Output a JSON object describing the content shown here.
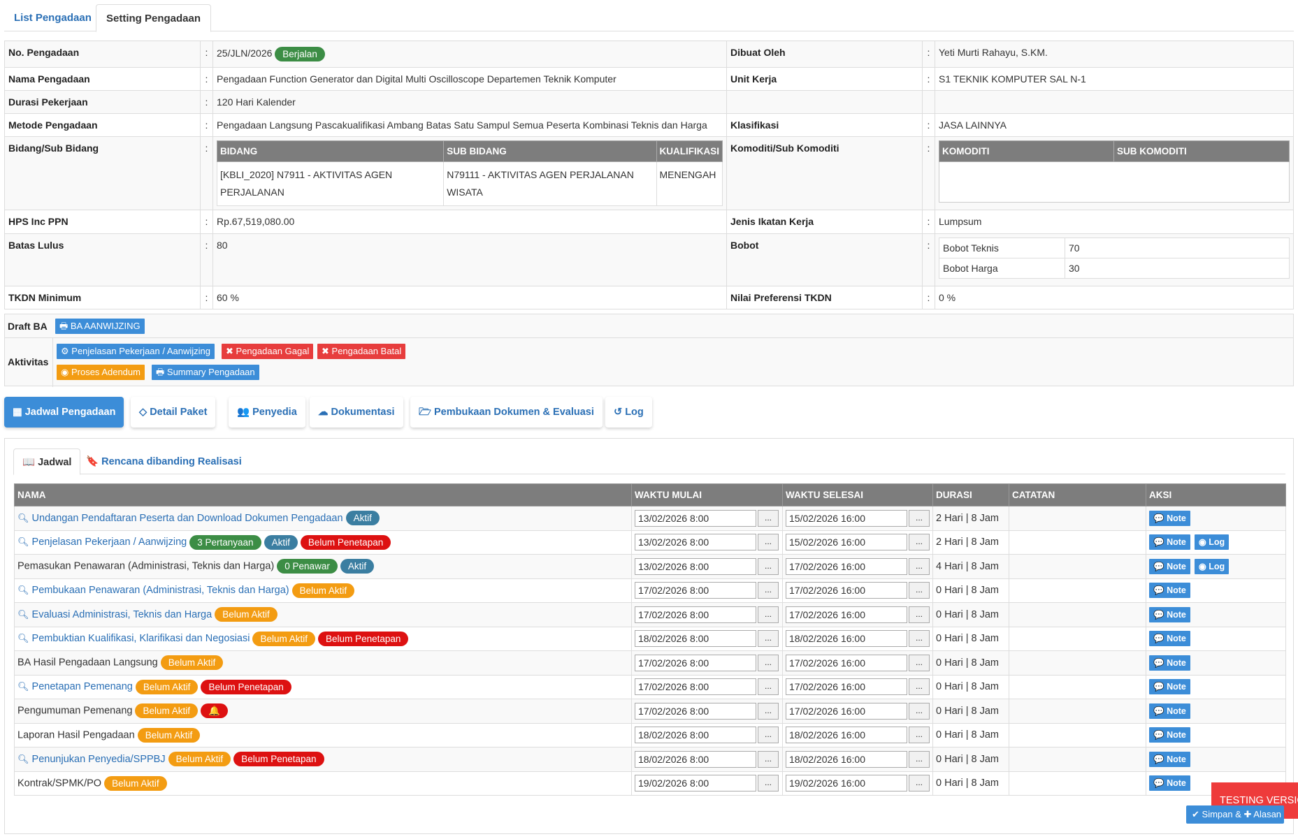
{
  "top_tabs": [
    {
      "label": "List Pengadaan"
    },
    {
      "label": "Setting Pengadaan"
    }
  ],
  "info": {
    "no_pengadaan": {
      "label": "No. Pengadaan",
      "value": "25/JLN/2026",
      "status": "Berjalan"
    },
    "dibuat_oleh": {
      "label": "Dibuat Oleh",
      "value": "Yeti Murti Rahayu, S.KM."
    },
    "nama_pengadaan": {
      "label": "Nama Pengadaan",
      "value": "Pengadaan Function Generator dan Digital Multi Oscilloscope Departemen Teknik Komputer"
    },
    "unit_kerja": {
      "label": "Unit Kerja",
      "value": "S1 TEKNIK KOMPUTER SAL N-1"
    },
    "durasi": {
      "label": "Durasi Pekerjaan",
      "value": "120 Hari Kalender"
    },
    "metode": {
      "label": "Metode Pengadaan",
      "value": "Pengadaan Langsung Pascakualifikasi Ambang Batas Satu Sampul Semua Peserta Kombinasi Teknis dan Harga"
    },
    "klasifikasi": {
      "label": "Klasifikasi",
      "value": "JASA LAINNYA"
    },
    "bidang": {
      "label": "Bidang/Sub Bidang",
      "headers": [
        "BIDANG",
        "SUB BIDANG",
        "KUALIFIKASI"
      ],
      "bidang": "[KBLI_2020] N7911 - AKTIVITAS AGEN PERJALANAN",
      "sub_bidang": "N79111 - AKTIVITAS AGEN PERJALANAN WISATA",
      "kualifikasi": "MENENGAH"
    },
    "komoditi": {
      "label": "Komoditi/Sub Komoditi",
      "headers": [
        "KOMODITI",
        "SUB KOMODITI"
      ]
    },
    "hps": {
      "label": "HPS Inc PPN",
      "value": "Rp.67,519,080.00"
    },
    "jenis_ikatan": {
      "label": "Jenis Ikatan Kerja",
      "value": "Lumpsum"
    },
    "batas_lulus": {
      "label": "Batas Lulus",
      "value": "80"
    },
    "bobot": {
      "label": "Bobot",
      "teknis_label": "Bobot Teknis",
      "teknis": "70",
      "harga_label": "Bobot Harga",
      "harga": "30"
    },
    "tkdn": {
      "label": "TKDN Minimum",
      "value": "60 %"
    },
    "preferensi": {
      "label": "Nilai Preferensi TKDN",
      "value": "0 %"
    },
    "colon": ":"
  },
  "aktivitas": {
    "draft_label": "Draft BA",
    "ba_aanwijzing": "BA AANWIJZING",
    "aktivitas_label": "Aktivitas",
    "penjelasan": "Penjelasan Pekerjaan / Aanwijzing",
    "gagal": "Pengadaan Gagal",
    "batal": "Pengadaan Batal",
    "adendum": "Proses Adendum",
    "summary": "Summary Pengadaan"
  },
  "nav_tabs": {
    "jadwal": "Jadwal Pengadaan",
    "detail": "Detail Paket",
    "penyedia": "Penyedia",
    "dokumentasi": "Dokumentasi",
    "pembukaan": "Pembukaan Dokumen & Evaluasi",
    "log": "Log"
  },
  "sub_tabs": {
    "jadwal": "Jadwal",
    "rencana": "Rencana dibanding Realisasi"
  },
  "schedule": {
    "headers": {
      "nama": "NAMA",
      "mulai": "WAKTU MULAI",
      "selesai": "WAKTU SELESAI",
      "durasi": "DURASI",
      "catatan": "CATATAN",
      "aksi": "AKSI"
    },
    "note_label": "Note",
    "log_label": "Log",
    "dots": "...",
    "rows": [
      {
        "name": "Undangan Pendaftaran Peserta dan Download Dokumen Pengadaan",
        "link": true,
        "badges": [
          {
            "text": "Aktif",
            "color": "blue"
          }
        ],
        "start": "13/02/2026 8:00",
        "end": "15/02/2026 16:00",
        "duration": "2 Hari | 8 Jam",
        "log": false
      },
      {
        "name": "Penjelasan Pekerjaan / Aanwijzing",
        "link": true,
        "badges": [
          {
            "text": "3 Pertanyaan",
            "color": "green"
          },
          {
            "text": "Aktif",
            "color": "blue"
          },
          {
            "text": "Belum Penetapan",
            "color": "red"
          }
        ],
        "start": "13/02/2026 8:00",
        "end": "15/02/2026 16:00",
        "duration": "2 Hari | 8 Jam",
        "log": true
      },
      {
        "name": "Pemasukan Penawaran (Administrasi, Teknis dan Harga)",
        "link": false,
        "badges": [
          {
            "text": "0 Penawar",
            "color": "green"
          },
          {
            "text": "Aktif",
            "color": "blue"
          }
        ],
        "start": "13/02/2026 8:00",
        "end": "17/02/2026 16:00",
        "duration": "4 Hari | 8 Jam",
        "log": true
      },
      {
        "name": "Pembukaan Penawaran (Administrasi, Teknis dan Harga)",
        "link": true,
        "badges": [
          {
            "text": "Belum Aktif",
            "color": "orange"
          }
        ],
        "start": "17/02/2026 8:00",
        "end": "17/02/2026 16:00",
        "duration": "0 Hari | 8 Jam",
        "log": false
      },
      {
        "name": "Evaluasi Administrasi, Teknis dan Harga",
        "link": true,
        "badges": [
          {
            "text": "Belum Aktif",
            "color": "orange"
          }
        ],
        "start": "17/02/2026 8:00",
        "end": "17/02/2026 16:00",
        "duration": "0 Hari | 8 Jam",
        "log": false
      },
      {
        "name": "Pembuktian Kualifikasi, Klarifikasi dan Negosiasi",
        "link": true,
        "badges": [
          {
            "text": "Belum Aktif",
            "color": "orange"
          },
          {
            "text": "Belum Penetapan",
            "color": "red"
          }
        ],
        "start": "18/02/2026 8:00",
        "end": "18/02/2026 16:00",
        "duration": "0 Hari | 8 Jam",
        "log": false
      },
      {
        "name": "BA Hasil Pengadaan Langsung",
        "link": false,
        "badges": [
          {
            "text": "Belum Aktif",
            "color": "orange"
          }
        ],
        "start": "17/02/2026 8:00",
        "end": "17/02/2026 16:00",
        "duration": "0 Hari | 8 Jam",
        "log": false
      },
      {
        "name": "Penetapan Pemenang",
        "link": true,
        "badges": [
          {
            "text": "Belum Aktif",
            "color": "orange"
          },
          {
            "text": "Belum Penetapan",
            "color": "red"
          }
        ],
        "start": "17/02/2026 8:00",
        "end": "17/02/2026 16:00",
        "duration": "0 Hari | 8 Jam",
        "log": false
      },
      {
        "name": "Pengumuman Pemenang",
        "link": false,
        "badges": [
          {
            "text": "Belum Aktif",
            "color": "orange"
          },
          {
            "text": "🔔",
            "color": "red"
          }
        ],
        "start": "17/02/2026 8:00",
        "end": "17/02/2026 16:00",
        "duration": "0 Hari | 8 Jam",
        "log": false
      },
      {
        "name": "Laporan Hasil Pengadaan",
        "link": false,
        "badges": [
          {
            "text": "Belum Aktif",
            "color": "orange"
          }
        ],
        "start": "18/02/2026 8:00",
        "end": "18/02/2026 16:00",
        "duration": "0 Hari | 8 Jam",
        "log": false
      },
      {
        "name": "Penunjukan Penyedia/SPPBJ",
        "link": true,
        "badges": [
          {
            "text": "Belum Aktif",
            "color": "orange"
          },
          {
            "text": "Belum Penetapan",
            "color": "red"
          }
        ],
        "start": "18/02/2026 8:00",
        "end": "18/02/2026 16:00",
        "duration": "0 Hari | 8 Jam",
        "log": false
      },
      {
        "name": "Kontrak/SPMK/PO",
        "link": false,
        "badges": [
          {
            "text": "Belum Aktif",
            "color": "orange"
          }
        ],
        "start": "19/02/2026 8:00",
        "end": "19/02/2026 16:00",
        "duration": "0 Hari | 8 Jam",
        "log": false
      }
    ]
  },
  "footer": {
    "testing": "TESTING VERSION",
    "simpan": "Simpan & ✚ Alasan"
  }
}
